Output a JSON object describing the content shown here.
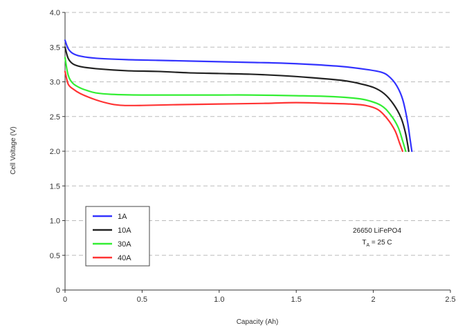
{
  "chart_data": {
    "type": "line",
    "title": "",
    "xlabel": "Capacity (Ah)",
    "ylabel": "Cell Voltage (V)",
    "xlim": [
      0,
      2.5
    ],
    "ylim": [
      0,
      4.0
    ],
    "x_ticks": [
      "0",
      "0.5",
      "1.0",
      "1.5",
      "2",
      "2.5"
    ],
    "y_ticks": [
      "0",
      "0.5",
      "1.0",
      "1.5",
      "2.0",
      "2.5",
      "3.0",
      "3.5",
      "4.0"
    ],
    "grid": "horizontal dashed",
    "legend_position": "bottom-left",
    "annotation": {
      "line1": "26650 LiFePO4",
      "line2_prefix": "T",
      "line2_sub": "A",
      "line2_suffix": " = 25 C"
    },
    "series": [
      {
        "name": "1A",
        "color": "#3333ff",
        "points": [
          [
            0,
            3.6
          ],
          [
            0.02,
            3.48
          ],
          [
            0.05,
            3.41
          ],
          [
            0.1,
            3.37
          ],
          [
            0.2,
            3.34
          ],
          [
            0.4,
            3.32
          ],
          [
            0.6,
            3.31
          ],
          [
            0.8,
            3.3
          ],
          [
            1.0,
            3.29
          ],
          [
            1.2,
            3.28
          ],
          [
            1.4,
            3.27
          ],
          [
            1.6,
            3.25
          ],
          [
            1.8,
            3.22
          ],
          [
            1.95,
            3.18
          ],
          [
            2.05,
            3.14
          ],
          [
            2.1,
            3.08
          ],
          [
            2.15,
            2.95
          ],
          [
            2.19,
            2.75
          ],
          [
            2.22,
            2.45
          ],
          [
            2.24,
            2.15
          ],
          [
            2.25,
            2.0
          ]
        ]
      },
      {
        "name": "10A",
        "color": "#222222",
        "points": [
          [
            0,
            3.5
          ],
          [
            0.02,
            3.34
          ],
          [
            0.05,
            3.26
          ],
          [
            0.1,
            3.22
          ],
          [
            0.2,
            3.19
          ],
          [
            0.4,
            3.16
          ],
          [
            0.6,
            3.15
          ],
          [
            0.8,
            3.13
          ],
          [
            1.0,
            3.12
          ],
          [
            1.2,
            3.11
          ],
          [
            1.4,
            3.09
          ],
          [
            1.6,
            3.06
          ],
          [
            1.8,
            3.02
          ],
          [
            1.9,
            2.98
          ],
          [
            2.0,
            2.92
          ],
          [
            2.07,
            2.83
          ],
          [
            2.13,
            2.68
          ],
          [
            2.18,
            2.48
          ],
          [
            2.21,
            2.25
          ],
          [
            2.23,
            2.0
          ]
        ]
      },
      {
        "name": "30A",
        "color": "#33ee33",
        "points": [
          [
            0,
            3.35
          ],
          [
            0.02,
            3.1
          ],
          [
            0.05,
            2.98
          ],
          [
            0.1,
            2.91
          ],
          [
            0.15,
            2.87
          ],
          [
            0.2,
            2.84
          ],
          [
            0.3,
            2.82
          ],
          [
            0.5,
            2.81
          ],
          [
            0.8,
            2.81
          ],
          [
            1.0,
            2.81
          ],
          [
            1.2,
            2.81
          ],
          [
            1.5,
            2.8
          ],
          [
            1.7,
            2.79
          ],
          [
            1.85,
            2.77
          ],
          [
            1.95,
            2.74
          ],
          [
            2.05,
            2.66
          ],
          [
            2.11,
            2.53
          ],
          [
            2.16,
            2.35
          ],
          [
            2.19,
            2.15
          ],
          [
            2.21,
            2.0
          ]
        ]
      },
      {
        "name": "40A",
        "color": "#ff3333",
        "points": [
          [
            0,
            3.15
          ],
          [
            0.02,
            2.97
          ],
          [
            0.05,
            2.9
          ],
          [
            0.1,
            2.83
          ],
          [
            0.2,
            2.74
          ],
          [
            0.3,
            2.68
          ],
          [
            0.38,
            2.66
          ],
          [
            0.5,
            2.66
          ],
          [
            0.7,
            2.67
          ],
          [
            1.0,
            2.68
          ],
          [
            1.3,
            2.69
          ],
          [
            1.5,
            2.7
          ],
          [
            1.7,
            2.69
          ],
          [
            1.85,
            2.68
          ],
          [
            1.95,
            2.66
          ],
          [
            2.03,
            2.6
          ],
          [
            2.09,
            2.47
          ],
          [
            2.14,
            2.3
          ],
          [
            2.17,
            2.12
          ],
          [
            2.19,
            2.0
          ]
        ]
      }
    ]
  }
}
